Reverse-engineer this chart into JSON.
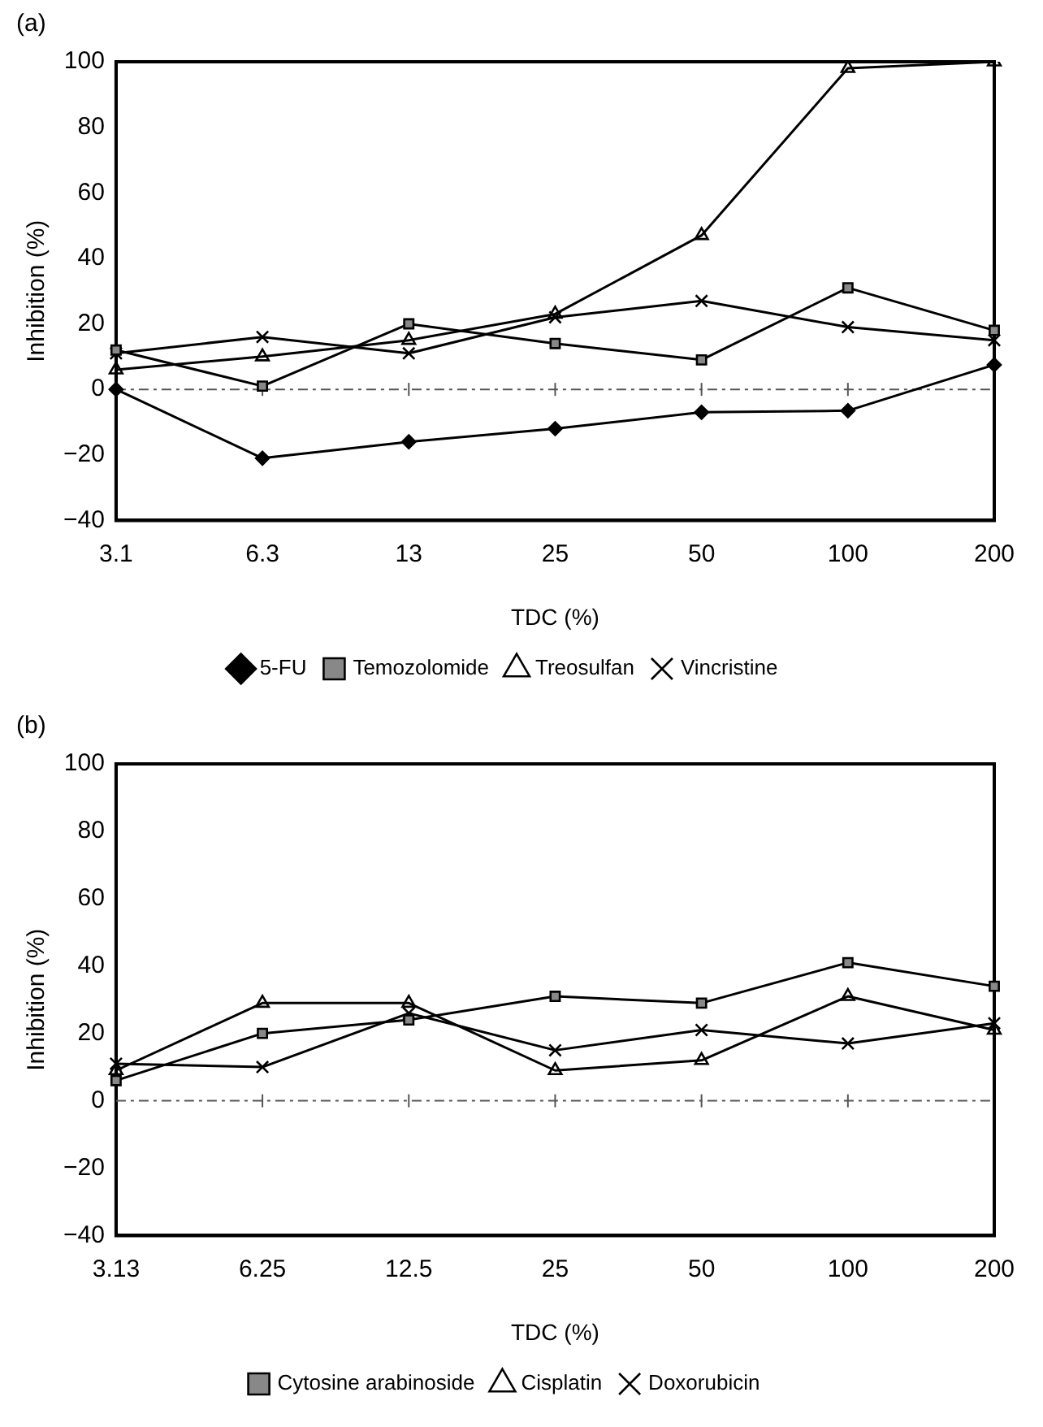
{
  "chart_data": [
    {
      "type": "line",
      "title": "(a)",
      "xlabel": "TDC (%)",
      "ylabel": "Inhibition (%)",
      "categories": [
        "3.1",
        "6.3",
        "13",
        "25",
        "50",
        "100",
        "200"
      ],
      "series": [
        {
          "name": "5-FU",
          "color": "#000000",
          "marker": "diamond",
          "values": [
            0,
            -21,
            -16,
            -12,
            -7,
            -6.5,
            7.5
          ]
        },
        {
          "name": "Temozolomide",
          "color": "#000000",
          "marker": "square",
          "values": [
            12,
            1,
            20,
            14,
            9,
            31,
            18
          ]
        },
        {
          "name": "Treosulfan",
          "color": "#000000",
          "marker": "triangle",
          "values": [
            6,
            10,
            15,
            23,
            47,
            98,
            100
          ]
        },
        {
          "name": "Vincristine",
          "color": "#000000",
          "marker": "cross",
          "values": [
            11,
            16,
            11,
            22,
            27,
            19,
            15
          ]
        }
      ],
      "ylim": [
        -40,
        100
      ],
      "yticks": [
        -40,
        -20,
        0,
        20,
        40,
        60,
        80,
        100
      ],
      "grid": false,
      "legend": "bottom",
      "line_style": "solid",
      "ref_lines": [
        {
          "axis": "y",
          "value": 0,
          "color": "#555555",
          "line_style": "dashed"
        }
      ]
    },
    {
      "type": "line",
      "title": "(b)",
      "xlabel": "TDC (%)",
      "ylabel": "Inhibition (%)",
      "categories": [
        "3.13",
        "6.25",
        "12.5",
        "25",
        "50",
        "100",
        "200"
      ],
      "series": [
        {
          "name": "Cytosine arabinoside",
          "color": "#000000",
          "marker": "square",
          "values": [
            6,
            20,
            24,
            31,
            29,
            41,
            34
          ]
        },
        {
          "name": "Cisplatin",
          "color": "#000000",
          "marker": "triangle",
          "values": [
            9,
            29,
            29,
            9,
            12,
            31,
            21
          ]
        },
        {
          "name": "Doxorubicin",
          "color": "#000000",
          "marker": "cross",
          "values": [
            11,
            10,
            26,
            15,
            21,
            17,
            23
          ]
        }
      ],
      "ylim": [
        -40,
        100
      ],
      "yticks": [
        -40,
        -20,
        0,
        20,
        40,
        60,
        80,
        100
      ],
      "grid": false,
      "legend": "bottom",
      "line_style": "solid",
      "ref_lines": [
        {
          "axis": "y",
          "value": 0,
          "color": "#555555",
          "line_style": "dashed"
        }
      ]
    }
  ]
}
